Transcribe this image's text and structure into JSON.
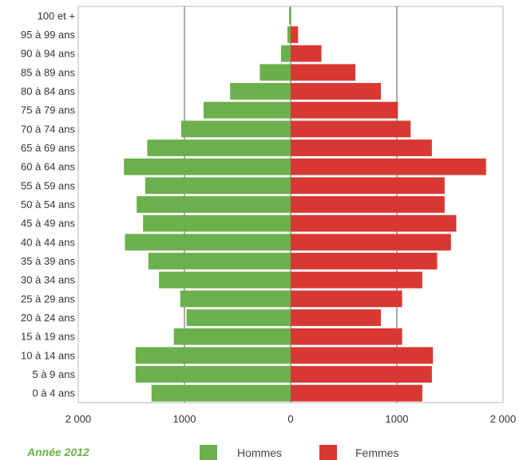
{
  "chart_data": {
    "type": "bar",
    "orientation": "horizontal-pyramid",
    "title": "",
    "xlabel": "",
    "ylabel": "",
    "categories": [
      "0 à 4 ans",
      "5 à 9 ans",
      "10 à 14 ans",
      "15 à 19 ans",
      "20 à 24 ans",
      "25 à 29 ans",
      "30 à 34 ans",
      "35 à 39 ans",
      "40 à 44 ans",
      "45 à 49 ans",
      "50 à 54 ans",
      "55 à 59 ans",
      "60 à 64 ans",
      "65 à 69 ans",
      "70 à 74 ans",
      "75 à 79 ans",
      "80 à 84 ans",
      "85 à 89 ans",
      "90 à 94 ans",
      "95 à 99 ans",
      "100 et +"
    ],
    "series": [
      {
        "name": "Hommes",
        "color": "#6ab04c",
        "values": [
          1310,
          1460,
          1460,
          1100,
          980,
          1040,
          1240,
          1340,
          1560,
          1390,
          1450,
          1370,
          1570,
          1350,
          1030,
          820,
          570,
          290,
          90,
          30,
          15
        ]
      },
      {
        "name": "Femmes",
        "color": "#d93832",
        "values": [
          1240,
          1330,
          1340,
          1050,
          850,
          1050,
          1240,
          1380,
          1510,
          1560,
          1450,
          1450,
          1840,
          1330,
          1130,
          1010,
          850,
          610,
          290,
          70,
          0
        ]
      }
    ],
    "xlim": [
      -2000,
      2000
    ],
    "xticks": [
      -2000,
      -1000,
      0,
      1000,
      2000
    ],
    "xtick_labels": [
      "2 000",
      "1000",
      "0",
      "1000",
      "2 000"
    ],
    "grid": "vertical",
    "legend": "bottom",
    "annotation": "Année 2012"
  }
}
